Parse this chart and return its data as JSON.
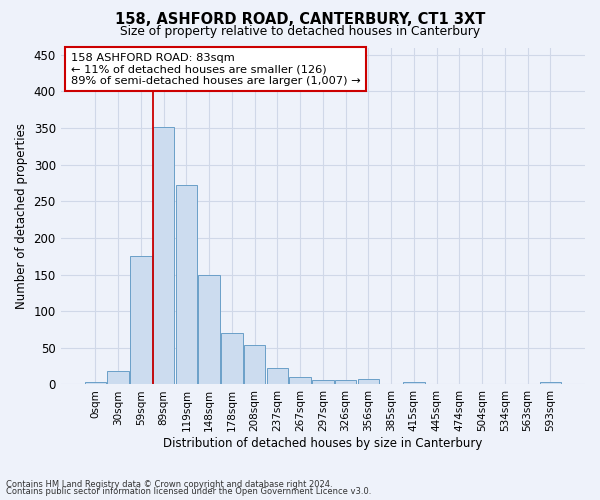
{
  "title": "158, ASHFORD ROAD, CANTERBURY, CT1 3XT",
  "subtitle": "Size of property relative to detached houses in Canterbury",
  "xlabel": "Distribution of detached houses by size in Canterbury",
  "ylabel": "Number of detached properties",
  "bar_values": [
    4,
    18,
    175,
    352,
    272,
    150,
    70,
    54,
    23,
    10,
    6,
    6,
    7,
    0,
    3,
    0,
    0,
    0,
    0,
    0,
    3
  ],
  "x_labels": [
    "0sqm",
    "30sqm",
    "59sqm",
    "89sqm",
    "119sqm",
    "148sqm",
    "178sqm",
    "208sqm",
    "237sqm",
    "267sqm",
    "297sqm",
    "326sqm",
    "356sqm",
    "385sqm",
    "415sqm",
    "445sqm",
    "474sqm",
    "504sqm",
    "534sqm",
    "563sqm",
    "593sqm"
  ],
  "bar_color": "#ccdcef",
  "bar_edge_color": "#6a9fc8",
  "grid_color": "#d0d8e8",
  "background_color": "#eef2fa",
  "red_line_index": 3,
  "annotation_line1": "158 ASHFORD ROAD: 83sqm",
  "annotation_line2": "← 11% of detached houses are smaller (126)",
  "annotation_line3": "89% of semi-detached houses are larger (1,007) →",
  "annotation_box_facecolor": "#ffffff",
  "annotation_border_color": "#cc0000",
  "footnote1": "Contains HM Land Registry data © Crown copyright and database right 2024.",
  "footnote2": "Contains public sector information licensed under the Open Government Licence v3.0.",
  "ylim": [
    0,
    460
  ],
  "yticks": [
    0,
    50,
    100,
    150,
    200,
    250,
    300,
    350,
    400,
    450
  ]
}
